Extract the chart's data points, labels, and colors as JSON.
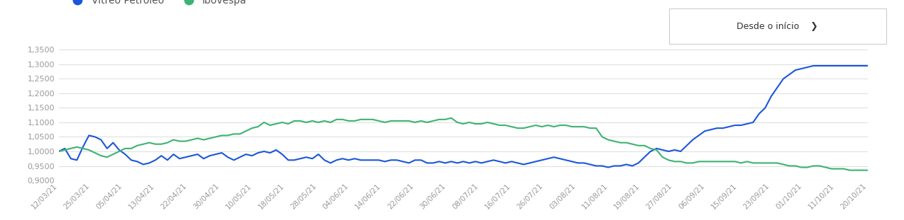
{
  "legend_label_vitreo": "Vitreo Petróleo",
  "legend_label_ibovespa": "Ibovespa",
  "dropdown_label": "Desde o início",
  "vitreo_color": "#1a56db",
  "ibovespa_color": "#3cb371",
  "background_color": "#ffffff",
  "grid_color": "#e0e0e0",
  "ylim": [
    0.9,
    1.37
  ],
  "yticks": [
    0.9,
    0.95,
    1.0,
    1.05,
    1.1,
    1.15,
    1.2,
    1.25,
    1.3,
    1.35
  ],
  "xtick_labels": [
    "12/03/21",
    "25/03/21",
    "05/04/21",
    "13/04/21",
    "22/04/21",
    "30/04/21",
    "10/05/21",
    "18/05/21",
    "28/05/21",
    "04/06/21",
    "14/06/21",
    "22/06/21",
    "30/06/21",
    "08/07/21",
    "16/07/21",
    "26/07/21",
    "03/08/21",
    "11/08/21",
    "19/08/21",
    "27/08/21",
    "06/09/21",
    "15/09/21",
    "23/09/21",
    "01/10/21",
    "11/10/21",
    "20/10/21"
  ],
  "vitreo": [
    1.0,
    1.01,
    0.975,
    0.97,
    1.015,
    1.055,
    1.05,
    1.04,
    1.01,
    1.03,
    1.005,
    0.99,
    0.97,
    0.965,
    0.955,
    0.96,
    0.97,
    0.985,
    0.97,
    0.99,
    0.975,
    0.98,
    0.985,
    0.99,
    0.975,
    0.985,
    0.99,
    0.995,
    0.98,
    0.97,
    0.98,
    0.99,
    0.985,
    0.995,
    1.0,
    0.995,
    1.005,
    0.99,
    0.97,
    0.97,
    0.975,
    0.98,
    0.975,
    0.99,
    0.97,
    0.96,
    0.97,
    0.975,
    0.97,
    0.975,
    0.97,
    0.97,
    0.97,
    0.97,
    0.965,
    0.97,
    0.97,
    0.965,
    0.96,
    0.97,
    0.97,
    0.96,
    0.96,
    0.965,
    0.96,
    0.965,
    0.96,
    0.965,
    0.96,
    0.965,
    0.96,
    0.965,
    0.97,
    0.965,
    0.96,
    0.965,
    0.96,
    0.955,
    0.96,
    0.965,
    0.97,
    0.975,
    0.98,
    0.975,
    0.97,
    0.965,
    0.96,
    0.96,
    0.955,
    0.95,
    0.95,
    0.945,
    0.95,
    0.95,
    0.955,
    0.95,
    0.96,
    0.98,
    1.0,
    1.01,
    1.005,
    1.0,
    1.005,
    1.0,
    1.02,
    1.04,
    1.055,
    1.07,
    1.075,
    1.08,
    1.08,
    1.085,
    1.09,
    1.09,
    1.095,
    1.1,
    1.13,
    1.15,
    1.19,
    1.22,
    1.25,
    1.265,
    1.28,
    1.285,
    1.29,
    1.295,
    1.295,
    1.295,
    1.295,
    1.295,
    1.295,
    1.295,
    1.295,
    1.295,
    1.295
  ],
  "ibovespa": [
    1.0,
    1.005,
    1.01,
    1.015,
    1.01,
    1.005,
    0.995,
    0.985,
    0.98,
    0.99,
    1.0,
    1.01,
    1.01,
    1.02,
    1.025,
    1.03,
    1.025,
    1.025,
    1.03,
    1.04,
    1.035,
    1.035,
    1.04,
    1.045,
    1.04,
    1.045,
    1.05,
    1.055,
    1.055,
    1.06,
    1.06,
    1.07,
    1.08,
    1.085,
    1.1,
    1.09,
    1.095,
    1.1,
    1.095,
    1.105,
    1.105,
    1.1,
    1.105,
    1.1,
    1.105,
    1.1,
    1.11,
    1.11,
    1.105,
    1.105,
    1.11,
    1.11,
    1.11,
    1.105,
    1.1,
    1.105,
    1.105,
    1.105,
    1.105,
    1.1,
    1.105,
    1.1,
    1.105,
    1.11,
    1.11,
    1.115,
    1.1,
    1.095,
    1.1,
    1.095,
    1.095,
    1.1,
    1.095,
    1.09,
    1.09,
    1.085,
    1.08,
    1.08,
    1.085,
    1.09,
    1.085,
    1.09,
    1.085,
    1.09,
    1.09,
    1.085,
    1.085,
    1.085,
    1.08,
    1.08,
    1.05,
    1.04,
    1.035,
    1.03,
    1.03,
    1.025,
    1.02,
    1.02,
    1.01,
    1.005,
    0.98,
    0.97,
    0.965,
    0.965,
    0.96,
    0.96,
    0.965,
    0.965,
    0.965,
    0.965,
    0.965,
    0.965,
    0.965,
    0.96,
    0.965,
    0.96,
    0.96,
    0.96,
    0.96,
    0.96,
    0.955,
    0.95,
    0.95,
    0.945,
    0.945,
    0.95,
    0.95,
    0.945,
    0.94,
    0.94,
    0.94,
    0.935,
    0.935,
    0.935,
    0.935
  ]
}
